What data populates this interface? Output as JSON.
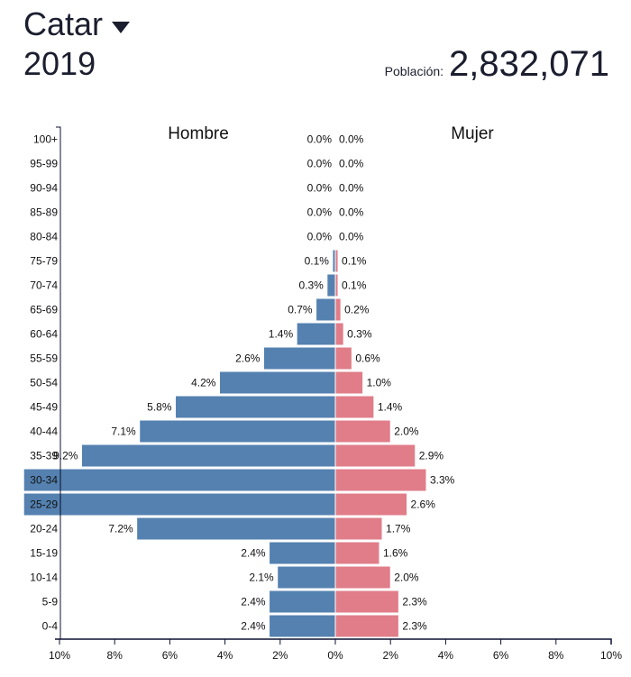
{
  "header": {
    "country": "Catar",
    "country_dropdown_icon": "caret-down-icon",
    "year": "2019",
    "population_label": "Población:",
    "population_value": "2,832,071"
  },
  "colors": {
    "male": "#5481b0",
    "female": "#e07d89",
    "axis": "#0d1030"
  },
  "chart_data": {
    "type": "bar",
    "subtype": "population-pyramid",
    "title": "",
    "left_label": "Hombre",
    "right_label": "Mujer",
    "categories": [
      "100+",
      "95-99",
      "90-94",
      "85-89",
      "80-84",
      "75-79",
      "70-74",
      "65-69",
      "60-64",
      "55-59",
      "50-54",
      "45-49",
      "40-44",
      "35-39",
      "30-34",
      "25-29",
      "20-24",
      "15-19",
      "10-14",
      "5-9",
      "0-4"
    ],
    "series": [
      {
        "name": "Hombre",
        "values": [
          0.0,
          0.0,
          0.0,
          0.0,
          0.0,
          0.1,
          0.3,
          0.7,
          1.4,
          2.6,
          4.2,
          5.8,
          7.1,
          9.2,
          11.3,
          11.3,
          7.2,
          2.4,
          2.1,
          2.4,
          2.4
        ],
        "labels": [
          "0.0%",
          "0.0%",
          "0.0%",
          "0.0%",
          "0.0%",
          "0.1%",
          "0.3%",
          "0.7%",
          "1.4%",
          "2.6%",
          "4.2%",
          "5.8%",
          "7.1%",
          "9.2%",
          "",
          "",
          "7.2%",
          "2.4%",
          "2.1%",
          "2.4%",
          "2.4%"
        ]
      },
      {
        "name": "Mujer",
        "values": [
          0.0,
          0.0,
          0.0,
          0.0,
          0.0,
          0.1,
          0.1,
          0.2,
          0.3,
          0.6,
          1.0,
          1.4,
          2.0,
          2.9,
          3.3,
          2.6,
          1.7,
          1.6,
          2.0,
          2.3,
          2.3
        ],
        "labels": [
          "0.0%",
          "0.0%",
          "0.0%",
          "0.0%",
          "0.0%",
          "0.1%",
          "0.1%",
          "0.2%",
          "0.3%",
          "0.6%",
          "1.0%",
          "1.4%",
          "2.0%",
          "2.9%",
          "3.3%",
          "2.6%",
          "1.7%",
          "1.6%",
          "2.0%",
          "2.3%",
          "2.3%"
        ]
      }
    ],
    "xticks": [
      "10%",
      "8%",
      "6%",
      "4%",
      "2%",
      "0%",
      "2%",
      "4%",
      "6%",
      "8%",
      "10%"
    ],
    "xlim": [
      -10,
      10
    ],
    "xlabel": "",
    "ylabel": "",
    "grid": false,
    "legend": "none"
  }
}
